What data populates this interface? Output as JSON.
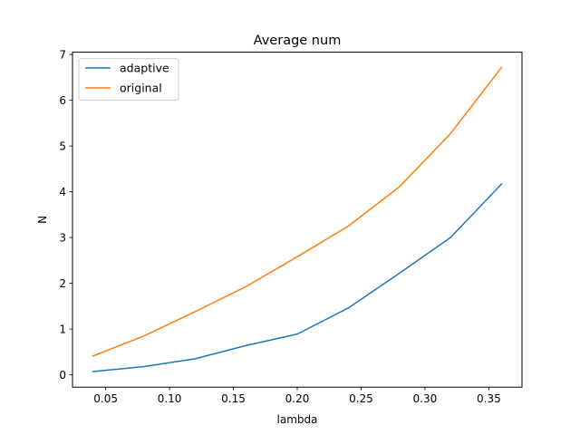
{
  "chart_data": {
    "type": "line",
    "title": "Average num",
    "xlabel": "lambda",
    "ylabel": "N",
    "xlim": [
      0.024,
      0.376
    ],
    "ylim": [
      -0.27,
      7.05
    ],
    "xticks": [
      0.05,
      0.1,
      0.15,
      0.2,
      0.25,
      0.3,
      0.35
    ],
    "xtick_labels": [
      "0.05",
      "0.10",
      "0.15",
      "0.20",
      "0.25",
      "0.30",
      "0.35"
    ],
    "yticks": [
      0,
      1,
      2,
      3,
      4,
      5,
      6,
      7
    ],
    "ytick_labels": [
      "0",
      "1",
      "2",
      "3",
      "4",
      "5",
      "6",
      "7"
    ],
    "grid": false,
    "legend_position": "upper-left",
    "x": [
      0.04,
      0.08,
      0.12,
      0.16,
      0.2,
      0.24,
      0.28,
      0.32,
      0.36
    ],
    "series": [
      {
        "name": "adaptive",
        "color": "#1f77b4",
        "values": [
          0.07,
          0.18,
          0.35,
          0.64,
          0.89,
          1.46,
          2.22,
          3.0,
          4.17
        ]
      },
      {
        "name": "original",
        "color": "#ff7f0e",
        "values": [
          0.41,
          0.85,
          1.38,
          1.93,
          2.58,
          3.25,
          4.11,
          5.27,
          6.72
        ]
      }
    ]
  }
}
